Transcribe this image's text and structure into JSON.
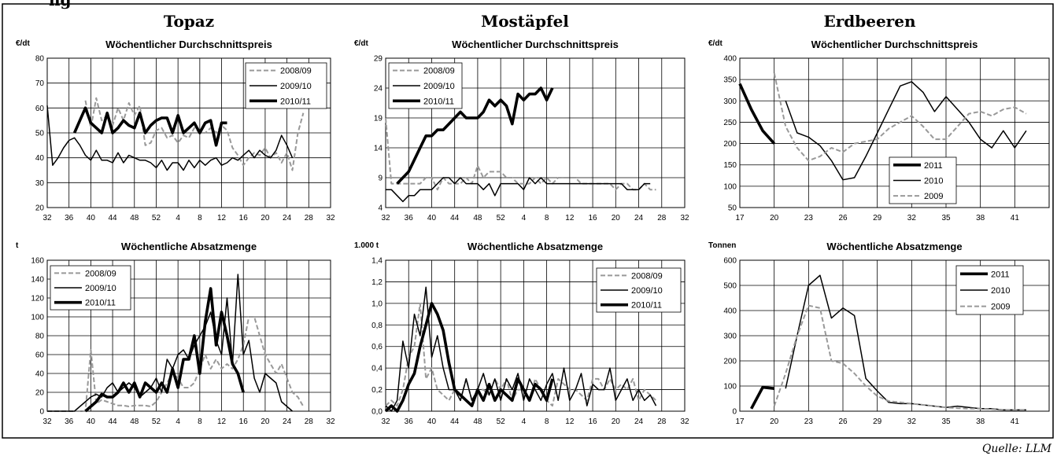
{
  "header": {
    "partial_text": "ng",
    "sections": [
      "Topaz",
      "Mostäpfel",
      "Erdbeeren"
    ],
    "source": "Quelle: LLM"
  },
  "chart_data": [
    {
      "type": "line",
      "section": "Topaz",
      "title": "Wöchentlicher Durchschnittspreis",
      "ylabel": "€/dt",
      "ylim": [
        20,
        80
      ],
      "yticks": [
        20,
        30,
        40,
        50,
        60,
        70,
        80
      ],
      "xticklabels": [
        "32",
        "36",
        "40",
        "44",
        "48",
        "52",
        "4",
        "8",
        "12",
        "16",
        "20",
        "24",
        "28",
        "32"
      ],
      "legend_position": "top-right",
      "grid": true,
      "series": [
        {
          "name": "2008/09",
          "style": "dashed",
          "values": [
            null,
            null,
            null,
            null,
            null,
            null,
            null,
            63,
            52,
            64,
            55,
            57,
            53,
            60,
            55,
            62,
            57,
            61,
            45,
            46,
            51,
            52,
            48,
            49,
            46,
            49,
            48,
            52,
            50,
            50,
            52,
            50,
            53,
            51,
            44,
            41,
            37,
            40,
            42,
            41,
            44,
            40,
            42,
            38,
            42,
            35,
            50,
            58
          ]
        },
        {
          "name": "2009/10",
          "style": "thin",
          "values": [
            61,
            37,
            40,
            44,
            47,
            48,
            45,
            41,
            39,
            43,
            39,
            39,
            38,
            42,
            38,
            41,
            40,
            39,
            39,
            38,
            36,
            39,
            35,
            38,
            38,
            35,
            39,
            36,
            39,
            37,
            39,
            40,
            37,
            38,
            40,
            39,
            41,
            43,
            40,
            43,
            41,
            40,
            43,
            49,
            45,
            40,
            null,
            null
          ]
        },
        {
          "name": "2010/11",
          "style": "thick",
          "values": [
            null,
            null,
            null,
            null,
            null,
            50,
            55,
            60,
            54,
            52,
            50,
            58,
            50,
            52,
            55,
            53,
            52,
            58,
            50,
            53,
            55,
            56,
            56,
            50,
            57,
            50,
            52,
            54,
            50,
            54,
            55,
            45,
            54,
            54,
            null,
            null,
            null,
            null,
            null,
            null,
            null,
            null,
            null,
            null,
            null,
            null,
            null,
            null
          ]
        }
      ]
    },
    {
      "type": "line",
      "section": "Mostäpfel",
      "title": "Wöchentlicher Durchschnittspreis",
      "ylabel": "€/dt",
      "ylim": [
        4,
        29
      ],
      "yticks": [
        4,
        9,
        14,
        19,
        24,
        29
      ],
      "xticklabels": [
        "32",
        "36",
        "40",
        "44",
        "48",
        "52",
        "4",
        "8",
        "12",
        "16",
        "20",
        "24",
        "28",
        "32"
      ],
      "legend_position": "top-left",
      "grid": true,
      "series": [
        {
          "name": "2008/09",
          "style": "dashed",
          "values": [
            19,
            8,
            8,
            8,
            8,
            8,
            8,
            9,
            9,
            7,
            9,
            8,
            8,
            8,
            9,
            8,
            11,
            9,
            10,
            10,
            10,
            9,
            9,
            8,
            8,
            8,
            9,
            8,
            9,
            8,
            9,
            9,
            9,
            9,
            8,
            8,
            8,
            8,
            8,
            8,
            7,
            8,
            8,
            7,
            7,
            8,
            7,
            7
          ]
        },
        {
          "name": "2009/10",
          "style": "thin",
          "values": [
            7,
            7,
            6,
            5,
            6,
            6,
            7,
            7,
            7,
            8,
            9,
            9,
            8,
            9,
            8,
            8,
            8,
            7,
            8,
            6,
            8,
            8,
            8,
            8,
            7,
            9,
            8,
            9,
            8,
            8,
            8,
            8,
            8,
            8,
            8,
            8,
            8,
            8,
            8,
            8,
            8,
            8,
            7,
            7,
            7,
            8,
            8,
            null
          ]
        },
        {
          "name": "2010/11",
          "style": "thick",
          "values": [
            null,
            null,
            8,
            9,
            10,
            12,
            14,
            16,
            16,
            17,
            17,
            18,
            19,
            20,
            19,
            19,
            19,
            20,
            22,
            21,
            22,
            21,
            18,
            23,
            22,
            23,
            23,
            24,
            22,
            24,
            null,
            null,
            null,
            null,
            null,
            null,
            null,
            null,
            null,
            null,
            null,
            null,
            null,
            null,
            null,
            null,
            null,
            null
          ]
        }
      ]
    },
    {
      "type": "line",
      "section": "Erdbeeren",
      "title": "Wöchentlicher Durchschnittspreis",
      "ylabel": "€/dt",
      "ylim": [
        50,
        400
      ],
      "yticks": [
        50,
        100,
        150,
        200,
        250,
        300,
        350,
        400
      ],
      "xticklabels": [
        "17",
        "20",
        "23",
        "26",
        "29",
        "32",
        "35",
        "38",
        "41"
      ],
      "legend_position": "bottom-center",
      "grid": true,
      "series": [
        {
          "name": "2011",
          "style": "thick",
          "x": [
            17,
            18,
            19,
            20
          ],
          "values": [
            340,
            280,
            230,
            200
          ]
        },
        {
          "name": "2010",
          "style": "thin",
          "x": [
            21,
            22,
            23,
            24,
            25,
            26,
            27,
            28,
            29,
            30,
            31,
            32,
            33,
            34,
            35,
            36,
            37,
            38,
            39,
            40,
            41,
            42
          ],
          "values": [
            300,
            225,
            215,
            195,
            160,
            115,
            120,
            170,
            225,
            280,
            335,
            345,
            320,
            275,
            310,
            280,
            250,
            210,
            190,
            230,
            190,
            230
          ]
        },
        {
          "name": "2009",
          "style": "dashed",
          "x": [
            20,
            21,
            22,
            23,
            24,
            25,
            26,
            27,
            28,
            29,
            30,
            31,
            32,
            33,
            34,
            35,
            36,
            37,
            38,
            39,
            40,
            41,
            42
          ],
          "values": [
            365,
            240,
            190,
            160,
            170,
            190,
            180,
            200,
            205,
            210,
            235,
            250,
            265,
            240,
            210,
            210,
            240,
            270,
            275,
            265,
            280,
            285,
            270
          ]
        }
      ]
    },
    {
      "type": "line",
      "section": "Topaz",
      "title": "Wöchentliche Absatzmenge",
      "ylabel": "t",
      "ylim": [
        0,
        160
      ],
      "yticks": [
        0,
        20,
        40,
        60,
        80,
        100,
        120,
        140,
        160
      ],
      "xticklabels": [
        "32",
        "36",
        "40",
        "44",
        "48",
        "52",
        "4",
        "8",
        "12",
        "16",
        "20",
        "24",
        "28",
        "32"
      ],
      "legend_position": "top-left",
      "grid": true,
      "series": [
        {
          "name": "2008/09",
          "style": "dashed",
          "values": [
            0,
            0,
            0,
            0,
            0,
            0,
            0,
            0,
            65,
            8,
            12,
            10,
            8,
            6,
            6,
            5,
            6,
            6,
            6,
            5,
            10,
            20,
            30,
            40,
            35,
            25,
            25,
            30,
            45,
            60,
            45,
            55,
            45,
            50,
            45,
            55,
            70,
            100,
            100,
            80,
            60,
            50,
            40,
            50,
            35,
            20,
            15,
            5
          ]
        },
        {
          "name": "2009/10",
          "style": "thin",
          "values": [
            0,
            0,
            0,
            0,
            0,
            0,
            5,
            10,
            15,
            18,
            15,
            25,
            30,
            20,
            25,
            30,
            25,
            15,
            20,
            25,
            35,
            20,
            55,
            45,
            60,
            65,
            55,
            70,
            80,
            90,
            105,
            75,
            60,
            120,
            50,
            145,
            60,
            75,
            35,
            20,
            40,
            35,
            30,
            10,
            5,
            0,
            null,
            null
          ]
        },
        {
          "name": "2010/11",
          "style": "thick",
          "values": [
            null,
            null,
            null,
            null,
            null,
            null,
            null,
            0,
            5,
            10,
            18,
            15,
            15,
            20,
            30,
            20,
            30,
            15,
            30,
            25,
            20,
            30,
            20,
            45,
            25,
            55,
            55,
            80,
            40,
            95,
            130,
            70,
            105,
            80,
            50,
            40,
            20,
            null,
            null,
            null,
            null,
            null,
            null,
            null,
            null,
            null,
            null,
            null
          ]
        }
      ]
    },
    {
      "type": "line",
      "section": "Mostäpfel",
      "title": "Wöchentliche Absatzmenge",
      "ylabel": "1.000 t",
      "ylim": [
        0,
        1.4
      ],
      "yticks": [
        0,
        0.2,
        0.4,
        0.6,
        0.8,
        1.0,
        1.2,
        1.4
      ],
      "yticklabels": [
        "0,0",
        "0,2",
        "0,4",
        "0,6",
        "0,8",
        "1,0",
        "1,2",
        "1,4"
      ],
      "xticklabels": [
        "32",
        "36",
        "40",
        "44",
        "48",
        "52",
        "4",
        "8",
        "12",
        "16",
        "20",
        "24",
        "28",
        "32"
      ],
      "legend_position": "top-right",
      "grid": true,
      "series": [
        {
          "name": "2008/09",
          "style": "dashed",
          "values": [
            0.05,
            0.1,
            0.05,
            0.2,
            0.5,
            0.6,
            1.0,
            0.3,
            0.4,
            0.2,
            0.15,
            0.1,
            0.2,
            0.1,
            0.3,
            0.1,
            0.2,
            0.2,
            0.15,
            0.3,
            0.2,
            0.3,
            0.1,
            0.2,
            0.2,
            0.1,
            0.3,
            0.2,
            0.1,
            0.05,
            0.3,
            0.25,
            0.2,
            0.2,
            0.15,
            0.1,
            0.3,
            0.3,
            0.2,
            0.3,
            0.2,
            0.25,
            0.2,
            0.3,
            0.1,
            0.2,
            0.15,
            0.1
          ]
        },
        {
          "name": "2009/10",
          "style": "thin",
          "values": [
            0.05,
            0.0,
            0.1,
            0.65,
            0.4,
            0.9,
            0.7,
            1.15,
            0.5,
            0.7,
            0.4,
            0.2,
            0.2,
            0.1,
            0.3,
            0.1,
            0.2,
            0.35,
            0.15,
            0.3,
            0.1,
            0.3,
            0.2,
            0.35,
            0.1,
            0.3,
            0.2,
            0.1,
            0.25,
            0.35,
            0.1,
            0.4,
            0.1,
            0.2,
            0.35,
            0.05,
            0.25,
            0.2,
            0.2,
            0.4,
            0.1,
            0.2,
            0.3,
            0.1,
            0.2,
            0.1,
            0.15,
            0.05
          ]
        },
        {
          "name": "2010/11",
          "style": "thick",
          "values": [
            0.0,
            0.05,
            0.0,
            0.1,
            0.25,
            0.35,
            0.6,
            0.8,
            1.0,
            0.9,
            0.75,
            0.45,
            0.2,
            0.15,
            0.1,
            0.05,
            0.2,
            0.1,
            0.25,
            0.1,
            0.2,
            0.15,
            0.1,
            0.3,
            0.2,
            0.1,
            0.25,
            0.2,
            0.1,
            0.3,
            null,
            null,
            null,
            null,
            null,
            null,
            null,
            null,
            null,
            null,
            null,
            null,
            null,
            null,
            null,
            null,
            null,
            null
          ]
        }
      ]
    },
    {
      "type": "line",
      "section": "Erdbeeren",
      "title": "Wöchentliche Absatzmenge",
      "ylabel": "Tonnen",
      "ylim": [
        0,
        600
      ],
      "yticks": [
        0,
        100,
        200,
        300,
        400,
        500,
        600
      ],
      "xticklabels": [
        "17",
        "20",
        "23",
        "26",
        "29",
        "32",
        "35",
        "38",
        "41"
      ],
      "legend_position": "top-right",
      "grid": true,
      "series": [
        {
          "name": "2011",
          "style": "thick",
          "x": [
            18,
            19,
            20
          ],
          "values": [
            10,
            95,
            90
          ]
        },
        {
          "name": "2010",
          "style": "thin",
          "x": [
            21,
            22,
            23,
            24,
            25,
            26,
            27,
            28,
            29,
            30,
            31,
            32,
            33,
            34,
            35,
            36,
            37,
            38,
            39,
            40,
            41,
            42
          ],
          "values": [
            90,
            300,
            500,
            540,
            370,
            410,
            380,
            130,
            80,
            35,
            30,
            30,
            25,
            20,
            15,
            20,
            15,
            10,
            10,
            5,
            5,
            5
          ]
        },
        {
          "name": "2009",
          "style": "dashed",
          "x": [
            20,
            21,
            22,
            23,
            24,
            25,
            26,
            27,
            28,
            29,
            30,
            31,
            32,
            33,
            34,
            35,
            36,
            37,
            38,
            39,
            40,
            41,
            42
          ],
          "values": [
            20,
            150,
            300,
            420,
            410,
            200,
            190,
            150,
            100,
            60,
            40,
            35,
            30,
            25,
            20,
            15,
            12,
            10,
            10,
            8,
            5,
            5,
            5
          ]
        }
      ]
    }
  ]
}
